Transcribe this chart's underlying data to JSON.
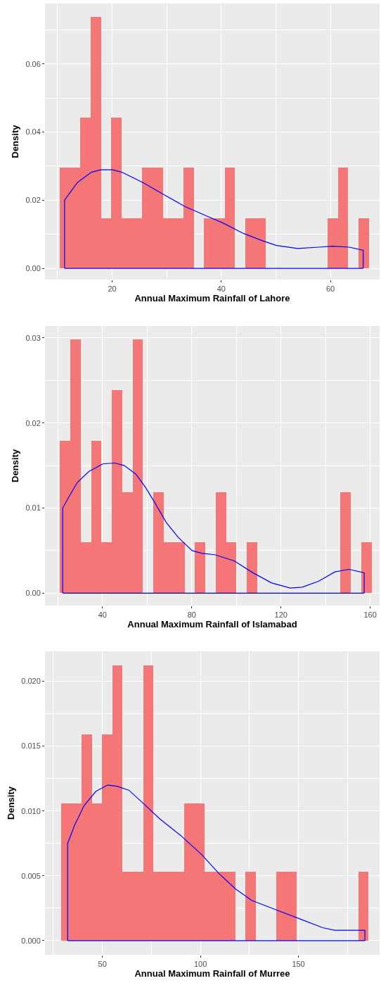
{
  "chart_data": [
    {
      "type": "histogram",
      "xlabel": "Annual Maximum Rainfall of Lahore",
      "ylabel": "Density",
      "grid": true,
      "xlim": [
        7.7,
        69.0
      ],
      "xticks": [
        20,
        40,
        60
      ],
      "ylim": [
        -0.0033,
        0.0777
      ],
      "yticks": [
        {
          "value": 0,
          "label": "0.00"
        },
        {
          "value": 0.02,
          "label": "0.02"
        },
        {
          "value": 0.04,
          "label": "0.04"
        },
        {
          "value": 0.06,
          "label": "0.06"
        }
      ],
      "series": [
        {
          "color": "#f47676",
          "bins": [
            10.43,
            12.32,
            14.2,
            16.09,
            17.97,
            19.86,
            21.75,
            23.63,
            25.52,
            27.4,
            29.29,
            31.18,
            33.06,
            34.95,
            36.83,
            38.72,
            40.61,
            42.49,
            44.38,
            46.26,
            48.15,
            50.04,
            51.92,
            53.81,
            55.69,
            57.58,
            59.47,
            61.35,
            63.24,
            65.12,
            67.01
          ],
          "values": [
            0.0295,
            0.0295,
            0.0442,
            0.0737,
            0.0147,
            0.0442,
            0.0147,
            0.0147,
            0.0295,
            0.0295,
            0.0147,
            0.0147,
            0.0295,
            0,
            0.0147,
            0.0147,
            0.0295,
            0,
            0.0147,
            0.0147,
            0,
            0,
            0,
            0,
            0,
            0,
            0.0147,
            0.0295,
            0,
            0.0147
          ]
        },
        {
          "type": "line",
          "color": "#0000ff",
          "x": [
            11.29,
            11.29,
            13.65,
            16.2,
            17.94,
            20.1,
            21.8,
            25.7,
            29.5,
            33.4,
            37.25,
            40.3,
            44.1,
            47.55,
            50.1,
            54.0,
            57.85,
            60.4,
            63.4,
            66.0,
            66.0
          ],
          "values": [
            0,
            0.02,
            0.0252,
            0.0282,
            0.0289,
            0.0289,
            0.0282,
            0.0251,
            0.0216,
            0.0181,
            0.0154,
            0.0133,
            0.0102,
            0.0081,
            0.0067,
            0.0058,
            0.0062,
            0.0065,
            0.0062,
            0.0053,
            0
          ]
        },
        {
          "type": "line",
          "color": "#0000ff",
          "x": [
            11.29,
            66.0
          ],
          "values": [
            0,
            0
          ]
        }
      ]
    },
    {
      "type": "histogram",
      "xlabel": "Annual Maximum Rainfall of Islamabad",
      "ylabel": "Density",
      "grid": true,
      "xlim": [
        14.2,
        164.2
      ],
      "xticks": [
        40,
        80,
        120,
        160
      ],
      "ylim": [
        -0.00146,
        0.0314
      ],
      "yticks": [
        {
          "value": 0,
          "label": "0.00"
        },
        {
          "value": 0.01,
          "label": "0.01"
        },
        {
          "value": 0.02,
          "label": "0.02"
        },
        {
          "value": 0.03,
          "label": "0.03"
        }
      ],
      "series": [
        {
          "color": "#f47676",
          "bins": [
            20.88,
            25.54,
            30.19,
            34.85,
            39.51,
            44.17,
            48.82,
            53.48,
            58.14,
            62.79,
            67.45,
            72.11,
            76.76,
            81.42,
            86.08,
            90.74,
            95.39,
            100.05,
            104.71,
            109.36,
            114.02,
            118.68,
            123.33,
            127.99,
            132.65,
            137.31,
            141.96,
            146.62,
            151.28,
            155.93,
            160.59
          ],
          "values": [
            0.0179,
            0.0298,
            0.006,
            0.0179,
            0.006,
            0.0239,
            0.0119,
            0.0298,
            0,
            0.0119,
            0.006,
            0.006,
            0,
            0.006,
            0,
            0.0119,
            0.006,
            0,
            0.006,
            0,
            0,
            0,
            0,
            0,
            0,
            0,
            0,
            0.0119,
            0,
            0.006
          ]
        },
        {
          "type": "line",
          "color": "#0000ff",
          "x": [
            22.14,
            22.14,
            24.45,
            28.65,
            33.9,
            40.2,
            45.5,
            49.7,
            54.9,
            59.1,
            63.3,
            68.6,
            73.8,
            80.1,
            84.3,
            90.6,
            99.0,
            107.4,
            115.8,
            124.2,
            129.5,
            136.8,
            144.2,
            150.5,
            157.3,
            157.3
          ],
          "values": [
            0,
            0.01,
            0.0111,
            0.013,
            0.0143,
            0.0152,
            0.0153,
            0.015,
            0.014,
            0.0125,
            0.0107,
            0.0083,
            0.0066,
            0.005,
            0.0047,
            0.0045,
            0.0038,
            0.0024,
            0.0012,
            0.0006,
            0.0007,
            0.0014,
            0.0025,
            0.0028,
            0.0024,
            0
          ]
        },
        {
          "type": "line",
          "color": "#0000ff",
          "x": [
            22.14,
            157.3
          ],
          "values": [
            0,
            0
          ]
        }
      ]
    },
    {
      "type": "histogram",
      "xlabel": "Annual Maximum Rainfall of Murree",
      "ylabel": "Density",
      "grid": true,
      "xlim": [
        20.7,
        191.4
      ],
      "xticks": [
        50,
        100,
        150
      ],
      "ylim": [
        -0.00109,
        0.0223
      ],
      "yticks": [
        {
          "value": 0,
          "label": "0.000"
        },
        {
          "value": 0.005,
          "label": "0.005"
        },
        {
          "value": 0.01,
          "label": "0.010"
        },
        {
          "value": 0.015,
          "label": "0.015"
        },
        {
          "value": 0.02,
          "label": "0.020"
        }
      ],
      "series": [
        {
          "color": "#f47676",
          "bins": [
            28.9,
            34.13,
            39.36,
            44.59,
            49.82,
            55.05,
            60.28,
            65.51,
            70.74,
            75.97,
            81.2,
            86.43,
            91.66,
            96.89,
            102.12,
            107.35,
            112.58,
            117.81,
            123.04,
            128.27,
            133.5,
            138.73,
            143.96,
            149.19,
            154.42,
            159.65,
            164.88,
            170.11,
            175.34,
            180.57,
            185.8
          ],
          "values": [
            0.0106,
            0.0106,
            0.0159,
            0.0106,
            0.0159,
            0.0212,
            0.0053,
            0.0053,
            0.0212,
            0.0053,
            0.0053,
            0.0053,
            0.0106,
            0.0106,
            0.0053,
            0.0053,
            0.0053,
            0,
            0.0053,
            0,
            0,
            0.0053,
            0.0053,
            0,
            0,
            0,
            0,
            0,
            0,
            0.0053
          ]
        },
        {
          "type": "line",
          "color": "#0000ff",
          "x": [
            32.27,
            32.27,
            35.8,
            40.6,
            46.6,
            52.65,
            57.5,
            63.5,
            70.75,
            79.2,
            90.0,
            100.9,
            109.3,
            117.8,
            126.2,
            138.3,
            150.4,
            162.4,
            168.5,
            183.9,
            183.9
          ],
          "values": [
            0,
            0.0075,
            0.0089,
            0.0104,
            0.0115,
            0.012,
            0.0119,
            0.0116,
            0.0106,
            0.0094,
            0.0081,
            0.0066,
            0.0052,
            0.004,
            0.0031,
            0.0024,
            0.0017,
            0.001,
            0.0008,
            0.0008,
            0
          ]
        },
        {
          "type": "line",
          "color": "#0000ff",
          "x": [
            32.27,
            183.9
          ],
          "values": [
            0,
            0
          ]
        }
      ]
    }
  ]
}
